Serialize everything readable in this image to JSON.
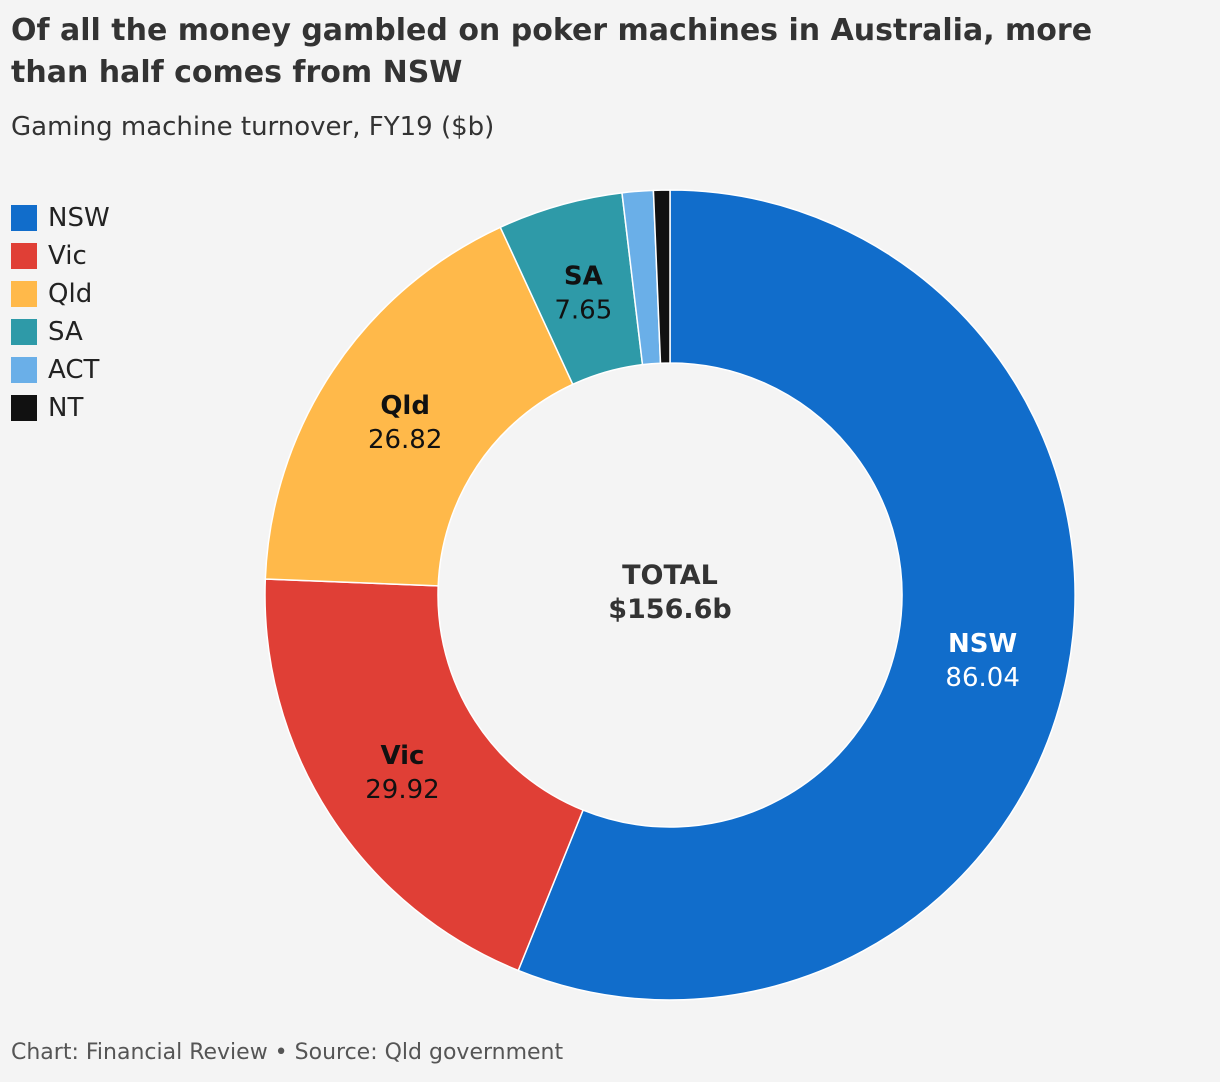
{
  "title": "Of all the money gambled on poker machines in Australia, more than half comes from NSW",
  "subtitle": "Gaming machine turnover, FY19 ($b)",
  "footer": "Chart: Financial Review • Source: Qld government",
  "center": {
    "line1": "TOTAL",
    "line2": "$156.6b"
  },
  "chart_data": {
    "type": "pie",
    "variant": "donut",
    "title": "Of all the money gambled on poker machines in Australia, more than half comes from NSW",
    "subtitle": "Gaming machine turnover, FY19 ($b)",
    "unit": "$b",
    "total": 156.6,
    "legend_position": "top-left",
    "slices": [
      {
        "name": "NSW",
        "value": 86.04,
        "color": "#116dcb",
        "label_color": "#ffffff",
        "show_label": true
      },
      {
        "name": "Vic",
        "value": 29.92,
        "color": "#e03f36",
        "label_color": "#111111",
        "show_label": true
      },
      {
        "name": "Qld",
        "value": 26.82,
        "color": "#ffb94a",
        "label_color": "#111111",
        "show_label": true
      },
      {
        "name": "SA",
        "value": 7.65,
        "color": "#2e9aa8",
        "label_color": "#111111",
        "show_label": true
      },
      {
        "name": "ACT",
        "value": 1.9,
        "color": "#6aafe8",
        "label_color": "#111111",
        "show_label": false
      },
      {
        "name": "NT",
        "value": 1.0,
        "color": "#111111",
        "label_color": "#ffffff",
        "show_label": false
      }
    ]
  }
}
